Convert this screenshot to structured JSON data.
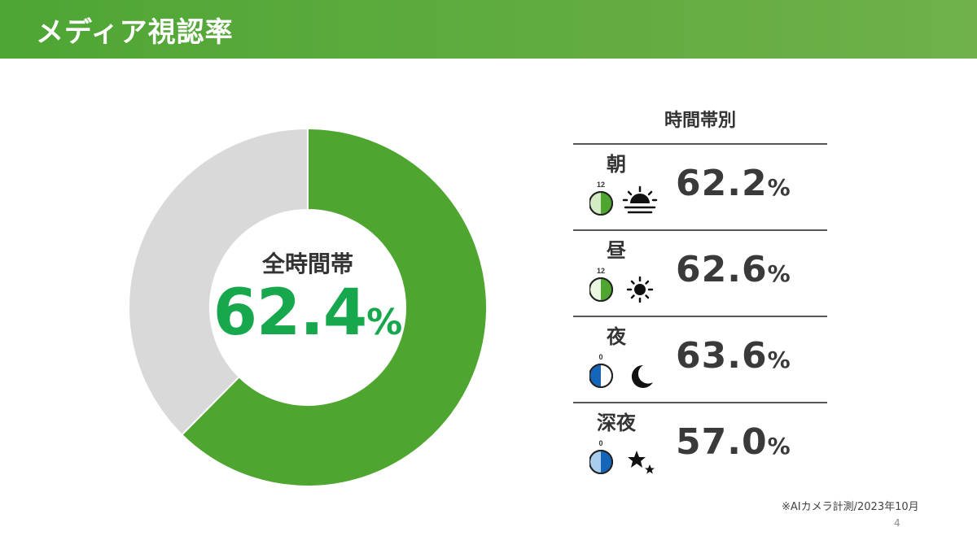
{
  "header": {
    "title": "メディア視認率"
  },
  "donut": {
    "label": "全時間帯",
    "value_num": "62.4",
    "value_unit": "%",
    "colors": {
      "fill": "#4ea630",
      "rest": "#d9d9d9",
      "center_text": "#17a84e"
    }
  },
  "table": {
    "title": "時間帯別",
    "rows": [
      {
        "label": "朝",
        "clock_label": "12",
        "value_num": "62.2",
        "unit": "%",
        "icon": "sunrise-icon"
      },
      {
        "label": "昼",
        "clock_label": "12",
        "value_num": "62.6",
        "unit": "%",
        "icon": "sun-icon"
      },
      {
        "label": "夜",
        "clock_label": "0",
        "value_num": "63.6",
        "unit": "%",
        "icon": "moon-icon"
      },
      {
        "label": "深夜",
        "clock_label": "0",
        "value_num": "57.0",
        "unit": "%",
        "icon": "stars-icon"
      }
    ]
  },
  "footnote": "※AIカメラ計測/2023年10月",
  "page_number": "4",
  "chart_data": {
    "type": "pie",
    "title": "",
    "categories": [
      "全時間帯",
      ""
    ],
    "values": [
      62.4,
      37.6
    ],
    "center_label": "全時間帯",
    "center_value": "62.4%",
    "breakdown": {
      "type": "table",
      "title": "時間帯別",
      "categories": [
        "朝",
        "昼",
        "夜",
        "深夜"
      ],
      "values": [
        62.2,
        62.6,
        63.6,
        57.0
      ],
      "unit": "%"
    }
  }
}
